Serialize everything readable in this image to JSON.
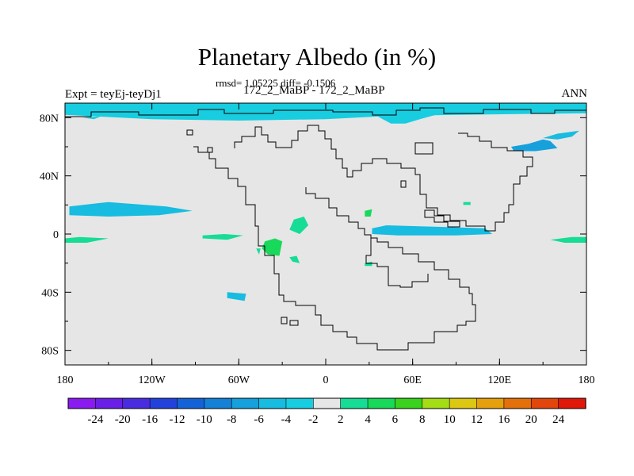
{
  "title": "Planetary Albedo (in %)",
  "stats": "rmsd= 1.05225 diff= -0.1506",
  "subtitle": "172_2_MaBP - 172_2_MaBP",
  "expt": "Expt = teyEj-teyDj1",
  "season": "ANN",
  "x_ticks": [
    "180",
    "120W",
    "60W",
    "0",
    "60E",
    "120E",
    "180"
  ],
  "y_ticks": [
    "80N",
    "40N",
    "0",
    "40S",
    "80S"
  ],
  "colorbar": {
    "labels": [
      "-24",
      "-20",
      "-16",
      "-12",
      "-10",
      "-8",
      "-6",
      "-4",
      "-2",
      "2",
      "4",
      "6",
      "8",
      "10",
      "12",
      "16",
      "20",
      "24"
    ],
    "colors": [
      "#8a1bf0",
      "#6a1fe6",
      "#4a2ce0",
      "#2342dc",
      "#1462d8",
      "#1480d6",
      "#16a0dc",
      "#17bce0",
      "#18cde0",
      "#e6e6e6",
      "#16dc96",
      "#18d95a",
      "#3ad21c",
      "#a4dc16",
      "#dcc812",
      "#e6a00e",
      "#e4700c",
      "#e2460c",
      "#e0180a"
    ]
  },
  "map_data": {
    "type": "contour-map",
    "field": "planetary albedo difference",
    "units": "%",
    "lon_range": [
      -180,
      180
    ],
    "lat_range": [
      -90,
      90
    ],
    "background_color": "#e6e6e6",
    "anomalies": [
      {
        "color": "#18cde0",
        "outline": [
          [
            -180,
            82
          ],
          [
            -120,
            79
          ],
          [
            -60,
            78
          ],
          [
            0,
            79
          ],
          [
            40,
            81
          ],
          [
            90,
            82
          ],
          [
            180,
            83
          ],
          [
            180,
            90
          ],
          [
            -180,
            90
          ]
        ]
      },
      {
        "color": "#18cde0",
        "outline": [
          [
            -168,
            80
          ],
          [
            -160,
            79
          ],
          [
            -155,
            81
          ]
        ]
      },
      {
        "color": "#18cde0",
        "outline": [
          [
            30,
            84
          ],
          [
            45,
            76
          ],
          [
            55,
            76
          ],
          [
            65,
            79
          ],
          [
            80,
            83
          ],
          [
            60,
            86
          ]
        ]
      },
      {
        "color": "#17bce0",
        "outline": [
          [
            -177,
            19
          ],
          [
            -150,
            22
          ],
          [
            -110,
            19
          ],
          [
            -92,
            16
          ],
          [
            -115,
            13
          ],
          [
            -150,
            12
          ],
          [
            -177,
            13
          ]
        ]
      },
      {
        "color": "#16a0dc",
        "outline": [
          [
            128,
            60
          ],
          [
            140,
            62
          ],
          [
            150,
            65
          ],
          [
            155,
            64
          ],
          [
            160,
            59
          ],
          [
            145,
            57
          ],
          [
            130,
            57
          ]
        ]
      },
      {
        "color": "#17bce0",
        "outline": [
          [
            150,
            66
          ],
          [
            160,
            69
          ],
          [
            175,
            71
          ],
          [
            170,
            67
          ],
          [
            160,
            65
          ]
        ]
      },
      {
        "color": "#17bce0",
        "outline": [
          [
            32,
            4
          ],
          [
            42,
            6
          ],
          [
            75,
            5
          ],
          [
            110,
            4
          ],
          [
            115,
            0
          ],
          [
            90,
            -1
          ],
          [
            50,
            -1
          ],
          [
            32,
            0
          ]
        ]
      },
      {
        "color": "#16dc96",
        "outline": [
          [
            -180,
            -3
          ],
          [
            -170,
            -2
          ],
          [
            -150,
            -3
          ],
          [
            -165,
            -6
          ],
          [
            -180,
            -6
          ]
        ]
      },
      {
        "color": "#16dc96",
        "outline": [
          [
            155,
            -4
          ],
          [
            170,
            -2
          ],
          [
            180,
            -2
          ],
          [
            180,
            -6
          ],
          [
            165,
            -6
          ]
        ]
      },
      {
        "color": "#16dc96",
        "outline": [
          [
            -85,
            -1
          ],
          [
            -70,
            0
          ],
          [
            -57,
            -1
          ],
          [
            -68,
            -4
          ],
          [
            -85,
            -3
          ]
        ]
      },
      {
        "color": "#18d95a",
        "outline": [
          [
            -42,
            -5
          ],
          [
            -35,
            -3
          ],
          [
            -30,
            -5
          ],
          [
            -32,
            -15
          ],
          [
            -40,
            -14
          ],
          [
            -44,
            -10
          ]
        ]
      },
      {
        "color": "#16dc96",
        "outline": [
          [
            -22,
            10
          ],
          [
            -15,
            12
          ],
          [
            -12,
            6
          ],
          [
            -18,
            0
          ],
          [
            -25,
            3
          ]
        ]
      },
      {
        "color": "#18d95a",
        "outline": [
          [
            27,
            16
          ],
          [
            32,
            17
          ],
          [
            31,
            12
          ],
          [
            27,
            12
          ]
        ]
      },
      {
        "color": "#16dc96",
        "outline": [
          [
            -25,
            -16
          ],
          [
            -20,
            -15
          ],
          [
            -18,
            -20
          ],
          [
            -23,
            -19
          ]
        ]
      },
      {
        "color": "#16dc96",
        "outline": [
          [
            27,
            -20
          ],
          [
            32,
            -19
          ],
          [
            32,
            -22
          ],
          [
            27,
            -22
          ]
        ]
      },
      {
        "color": "#16dc96",
        "outline": [
          [
            -48,
            -10
          ],
          [
            -45,
            -10
          ],
          [
            -46,
            -14
          ]
        ]
      },
      {
        "color": "#17bce0",
        "outline": [
          [
            -68,
            -40
          ],
          [
            -55,
            -41
          ],
          [
            -56,
            -46
          ],
          [
            -68,
            -44
          ]
        ]
      },
      {
        "color": "#16dc96",
        "outline": [
          [
            95,
            22
          ],
          [
            100,
            22
          ],
          [
            100,
            20
          ],
          [
            95,
            20
          ]
        ]
      }
    ]
  }
}
